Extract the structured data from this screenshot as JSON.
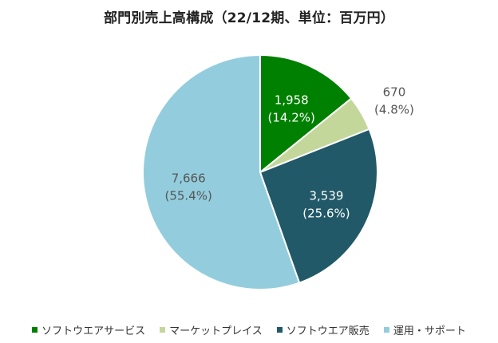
{
  "title": "部門別売上高構成（22/12期、単位：百万円）",
  "colors": {
    "software_services": "#008000",
    "marketplace": "#c4d79b",
    "software_sales": "#215968",
    "operations_support": "#93cddd",
    "slice_border": "#ffffff"
  },
  "chart_data": {
    "type": "pie",
    "title": "部門別売上高構成（22/12期、単位：百万円）",
    "legend_position": "bottom",
    "start_angle": "12 o'clock",
    "direction": "clockwise",
    "slices": [
      {
        "name": "ソフトウエアサービス",
        "value": 1958,
        "value_label": "1,958",
        "percent_label": "(14.2%)",
        "color": "#008000",
        "label_placement": "inside",
        "label_color": "#ffffff"
      },
      {
        "name": "マーケットプレイス",
        "value": 670,
        "value_label": "670",
        "percent_label": "(4.8%)",
        "color": "#c4d79b",
        "label_placement": "outside",
        "label_color": "#555555"
      },
      {
        "name": "ソフトウエア販売",
        "value": 3539,
        "value_label": "3,539",
        "percent_label": "(25.6%)",
        "color": "#215968",
        "label_placement": "inside",
        "label_color": "#ffffff"
      },
      {
        "name": "運用・サポート",
        "value": 7666,
        "value_label": "7,666",
        "percent_label": "(55.4%)",
        "color": "#93cddd",
        "label_placement": "inside",
        "label_color": "#555555"
      }
    ]
  }
}
